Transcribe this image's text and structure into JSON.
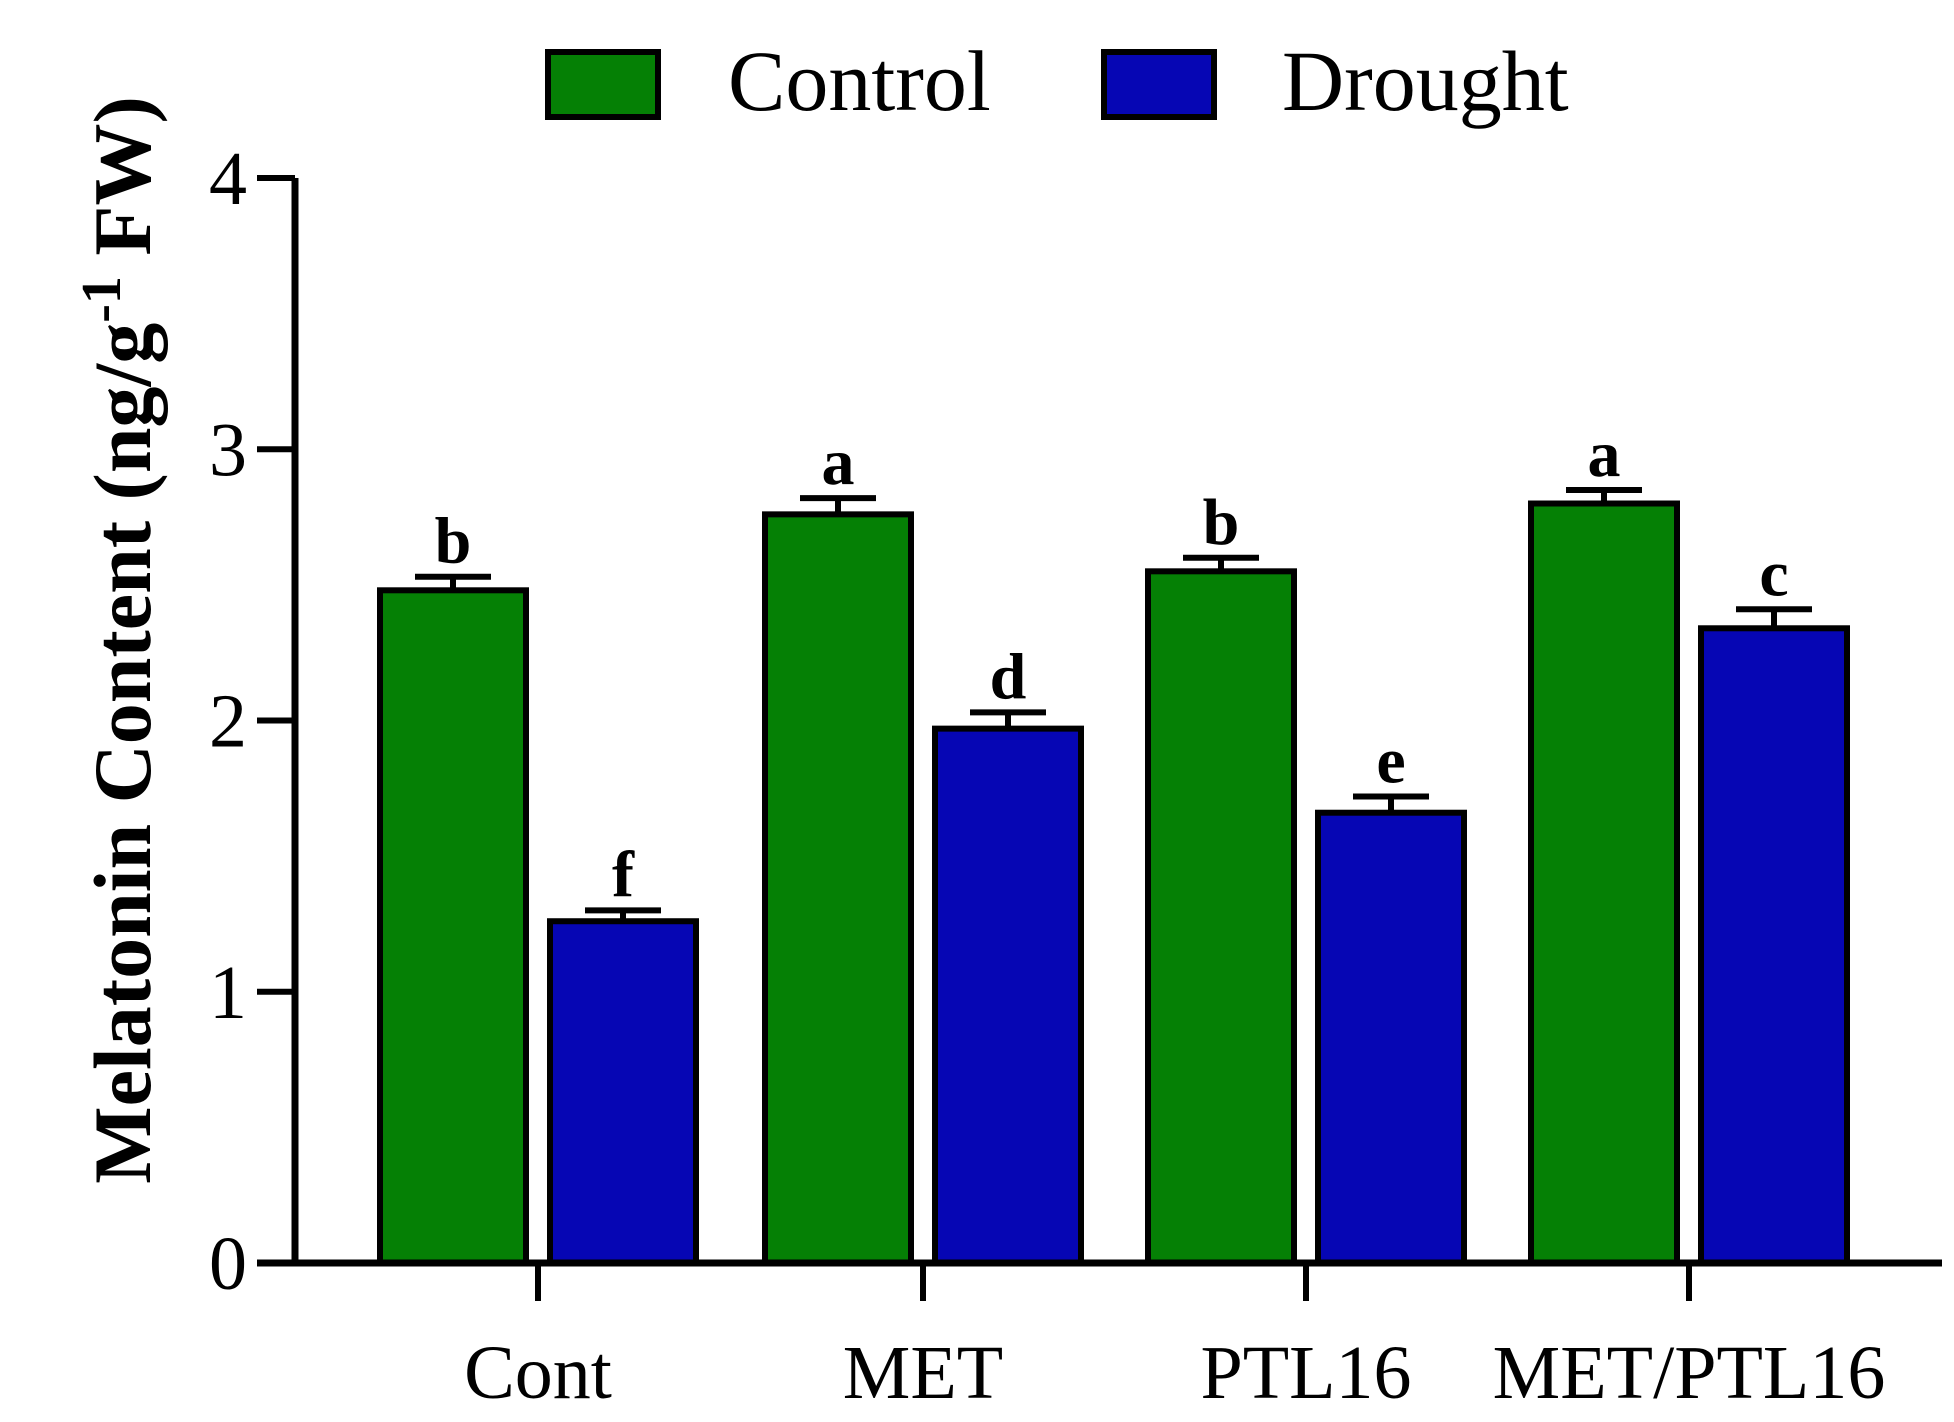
{
  "chart_data": {
    "type": "bar",
    "title": "",
    "xlabel": "",
    "ylabel": "Melatonin Content (ng/g",
    "ylabel_superscript": "-1",
    "ylabel_suffix": " FW)",
    "ylim": [
      0,
      4
    ],
    "yticks": [
      0,
      1,
      2,
      3,
      4
    ],
    "categories": [
      "Cont",
      "MET",
      "PTL16",
      "MET/PTL16"
    ],
    "legend_position": "top",
    "series": [
      {
        "name": "Control",
        "color": "#058005",
        "values": [
          2.48,
          2.76,
          2.55,
          2.8
        ],
        "errors": [
          0.05,
          0.06,
          0.05,
          0.05
        ],
        "labels": [
          "b",
          "a",
          "b",
          "a"
        ]
      },
      {
        "name": "Drought",
        "color": "#0606b4",
        "values": [
          1.26,
          1.97,
          1.66,
          2.34
        ],
        "errors": [
          0.04,
          0.06,
          0.06,
          0.07
        ],
        "labels": [
          "f",
          "d",
          "e",
          "c"
        ]
      }
    ]
  }
}
